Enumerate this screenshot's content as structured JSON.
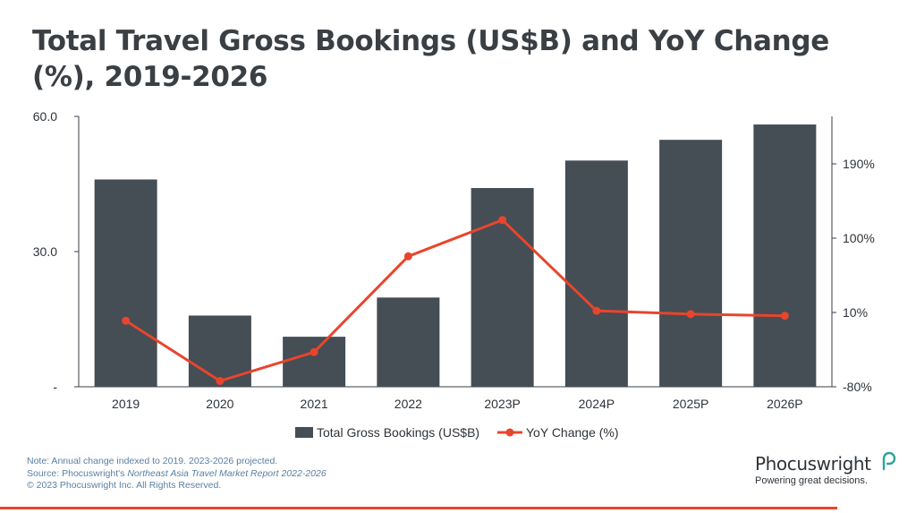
{
  "chart_data": {
    "type": "bar+line",
    "title": "Total Travel Gross Bookings (US$B) and YoY Change (%), 2019-2026",
    "categories": [
      "2019",
      "2020",
      "2021",
      "2022",
      "2023P",
      "2024P",
      "2025P",
      "2026P"
    ],
    "series": [
      {
        "name": "Total Gross Bookings (US$B)",
        "type": "bar",
        "axis": "left",
        "color": "#454d55",
        "values": [
          46.0,
          15.8,
          11.1,
          19.8,
          44.1,
          50.2,
          54.8,
          58.2
        ]
      },
      {
        "name": "YoY Change (%)",
        "type": "line",
        "axis": "right",
        "color": "#e8452c",
        "values": [
          0,
          -73,
          -38,
          78,
          122,
          12,
          8,
          6
        ]
      }
    ],
    "left_axis": {
      "ticks": [
        "-",
        "30.0",
        "60.0"
      ],
      "tick_values": [
        0,
        30,
        60
      ],
      "ylim": [
        0,
        60
      ]
    },
    "right_axis": {
      "ticks": [
        "-80%",
        "10%",
        "100%",
        "190%"
      ],
      "tick_values": [
        -80,
        10,
        100,
        190
      ],
      "ylim": [
        -80,
        247.5
      ]
    },
    "legend_position": "bottom-center"
  },
  "footnote": {
    "line1": "Note: Annual change indexed to 2019. 2023-2026 projected.",
    "line2_prefix": "Source: Phocuswright's ",
    "line2_title": "Northeast Asia Travel Market Report 2022-2026",
    "line3": "© 2023 Phocuswright Inc. All Rights Reserved."
  },
  "brand": {
    "name": "Phocuswright",
    "tagline": "Powering great decisions."
  },
  "colors": {
    "bar": "#454d55",
    "line": "#e8452c",
    "axis": "#3a3f44",
    "accent": "#e8452c"
  }
}
